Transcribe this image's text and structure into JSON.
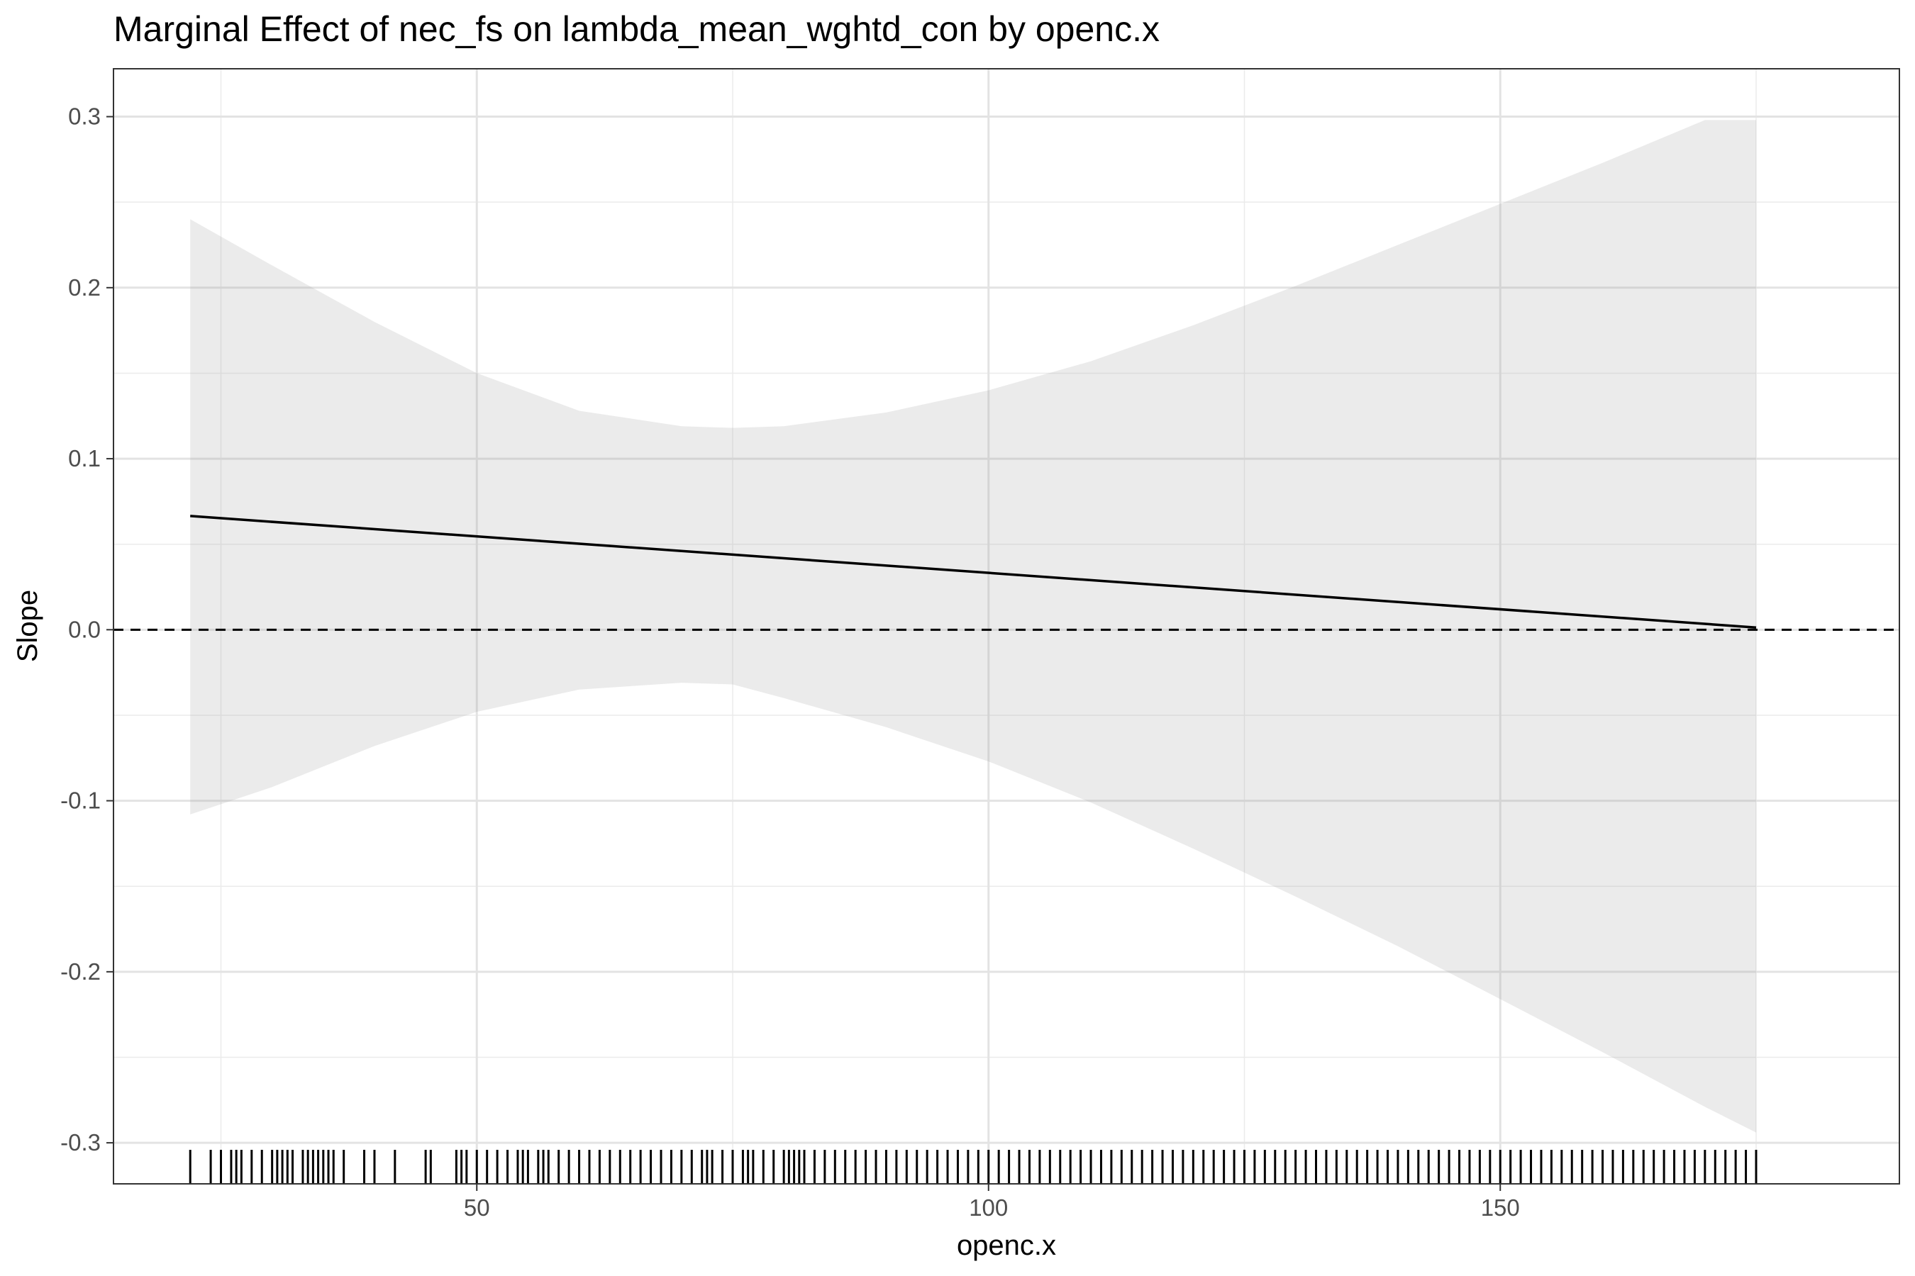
{
  "chart_data": {
    "type": "line",
    "title": "Marginal Effect of nec_fs on lambda_mean_wghtd_con by openc.x",
    "xlabel": "openc.x",
    "ylabel": "Slope",
    "xlim": [
      14.5,
      189
    ],
    "ylim": [
      -0.324,
      0.328
    ],
    "x_ticks": [
      50,
      100,
      150
    ],
    "x_tick_labels": [
      "50",
      "100",
      "150"
    ],
    "y_ticks": [
      -0.3,
      -0.2,
      -0.1,
      0.0,
      0.1,
      0.2,
      0.3
    ],
    "y_tick_labels": [
      "-0.3",
      "-0.2",
      "-0.1",
      "0.0",
      "0.1",
      "0.2",
      "0.3"
    ],
    "grid": true,
    "legend": "none",
    "reference_line": {
      "y": 0,
      "style": "dashed"
    },
    "series": [
      {
        "x": [
          22,
          175
        ],
        "values": [
          0.0665,
          0.0013
        ]
      }
    ],
    "confidence_band": {
      "x": [
        22,
        30,
        40,
        50,
        60,
        70,
        75,
        80,
        90,
        100,
        110,
        120,
        130,
        140,
        150,
        160,
        170,
        175
      ],
      "upper": [
        0.24,
        0.213,
        0.18,
        0.15,
        0.128,
        0.119,
        0.118,
        0.119,
        0.127,
        0.14,
        0.157,
        0.178,
        0.201,
        0.225,
        0.249,
        0.273,
        0.298,
        0.298
      ],
      "lower": [
        -0.108,
        -0.092,
        -0.068,
        -0.048,
        -0.035,
        -0.031,
        -0.032,
        -0.04,
        -0.057,
        -0.077,
        -0.101,
        -0.128,
        -0.156,
        -0.185,
        -0.216,
        -0.247,
        -0.279,
        -0.294
      ]
    },
    "rug_x": [
      22,
      24,
      25,
      26,
      26.5,
      27,
      28,
      29,
      30,
      30.5,
      31,
      31.5,
      32,
      33,
      33.5,
      34,
      34.5,
      35,
      35.5,
      36,
      37,
      39,
      40,
      42,
      45,
      45.5,
      48,
      48.5,
      49,
      50,
      51,
      52,
      53,
      54,
      54.5,
      55,
      56,
      56.5,
      57,
      58,
      59,
      60,
      61,
      62,
      63,
      64,
      65,
      66,
      67,
      68,
      69,
      70,
      71,
      72,
      72.5,
      73,
      74,
      75,
      76,
      76.5,
      77,
      78,
      79,
      80,
      80.5,
      81,
      81.5,
      82,
      83,
      84,
      85,
      86,
      87,
      88,
      89,
      90,
      91,
      92,
      93,
      94,
      95,
      96,
      97,
      98,
      99,
      100,
      101,
      102,
      103,
      104,
      105,
      106,
      107,
      108,
      109,
      110,
      111,
      112,
      113,
      114,
      115,
      116,
      117,
      118,
      119,
      120,
      121,
      122,
      123,
      124,
      125,
      126,
      127,
      128,
      129,
      130,
      131,
      132,
      133,
      134,
      135,
      136,
      137,
      138,
      139,
      140,
      141,
      142,
      143,
      144,
      145,
      146,
      147,
      148,
      149,
      150,
      151,
      152,
      153,
      154,
      155,
      156,
      157,
      158,
      159,
      160,
      161,
      162,
      163,
      164,
      165,
      166,
      167,
      168,
      169,
      170,
      171,
      172,
      173,
      174,
      175
    ]
  }
}
